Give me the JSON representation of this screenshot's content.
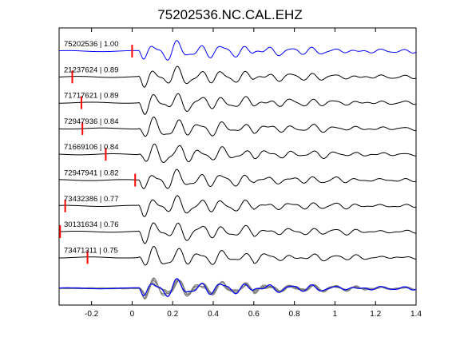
{
  "chart_data": {
    "type": "line",
    "title": "75202536.NC.CAL.EHZ",
    "xlabel": "",
    "ylabel": "",
    "xlim": [
      -0.36,
      1.4
    ],
    "x_ticks": [
      -0.2,
      0,
      0.2,
      0.4,
      0.6,
      0.8,
      1,
      1.2,
      1.4
    ],
    "x_tick_labels": [
      "-0.2",
      "0",
      "0.2",
      "0.4",
      "0.6",
      "0.8",
      "1",
      "1.2",
      "1.4"
    ],
    "grid": false,
    "colors": {
      "reference": "#0000ff",
      "trace": "#000000",
      "stack": "#808080",
      "pick": "#ff0000"
    },
    "series": [
      {
        "id": "75202536",
        "cc": "1.00",
        "label": "75202536 | 1.00",
        "pick_time": 0.0,
        "reference": true
      },
      {
        "id": "21237624",
        "cc": "0.89",
        "label": "21237624 | 0.89",
        "pick_time": -0.295
      },
      {
        "id": "71717621",
        "cc": "0.89",
        "label": "71717621 | 0.89",
        "pick_time": -0.25
      },
      {
        "id": "72947936",
        "cc": "0.84",
        "label": "72947936 | 0.84",
        "pick_time": -0.245
      },
      {
        "id": "71669106",
        "cc": "0.84",
        "label": "71669106 | 0.84",
        "pick_time": -0.13
      },
      {
        "id": "72947941",
        "cc": "0.82",
        "label": "72947941 | 0.82",
        "pick_time": 0.015
      },
      {
        "id": "73432386",
        "cc": "0.77",
        "label": "73432386 | 0.77",
        "pick_time": -0.33
      },
      {
        "id": "30131634",
        "cc": "0.76",
        "label": "30131634 | 0.76",
        "pick_time": -0.355
      },
      {
        "id": "73471311",
        "cc": "0.75",
        "label": "73471311 | 0.75",
        "pick_time": -0.22
      }
    ]
  }
}
